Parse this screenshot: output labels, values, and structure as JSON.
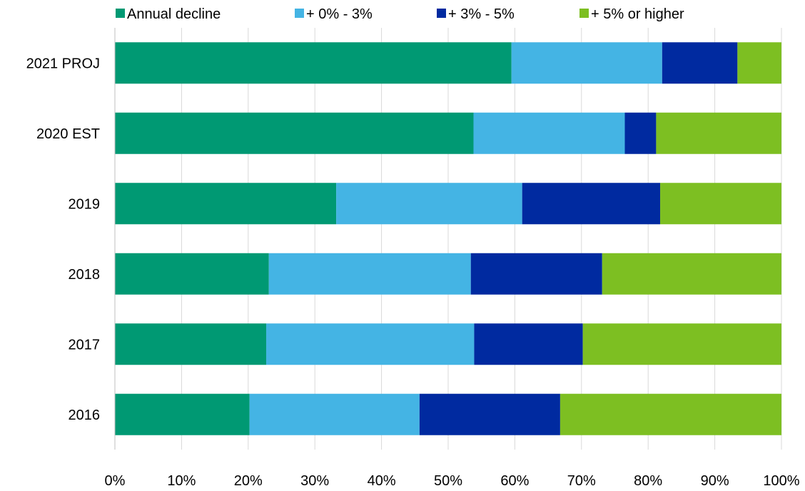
{
  "chart_data": {
    "type": "bar",
    "orientation": "horizontal",
    "stacked": true,
    "categories": [
      "2021 PROJ",
      "2020 EST",
      "2019",
      "2018",
      "2017",
      "2016"
    ],
    "series": [
      {
        "name": "Annual decline",
        "color": "#009973",
        "values": [
          59.5,
          53.8,
          33.2,
          23.1,
          22.7,
          20.2
        ]
      },
      {
        "name": "+ 0% - 3%",
        "color": "#44b4e4",
        "values": [
          22.6,
          22.7,
          27.9,
          30.3,
          31.2,
          25.5
        ]
      },
      {
        "name": "+ 3% - 5%",
        "color": "#002aa0",
        "values": [
          11.3,
          4.7,
          20.7,
          19.7,
          16.3,
          21.1
        ]
      },
      {
        "name": "+ 5% or higher",
        "color": "#7dbf22",
        "values": [
          6.6,
          18.8,
          18.2,
          26.9,
          29.8,
          33.2
        ]
      }
    ],
    "xlim": [
      0,
      100
    ],
    "x_ticks": [
      "0%",
      "10%",
      "20%",
      "30%",
      "40%",
      "50%",
      "60%",
      "70%",
      "80%",
      "90%",
      "100%"
    ],
    "grid": "vertical",
    "legend_position": "top",
    "gridline_color": "#d9d9d9"
  }
}
